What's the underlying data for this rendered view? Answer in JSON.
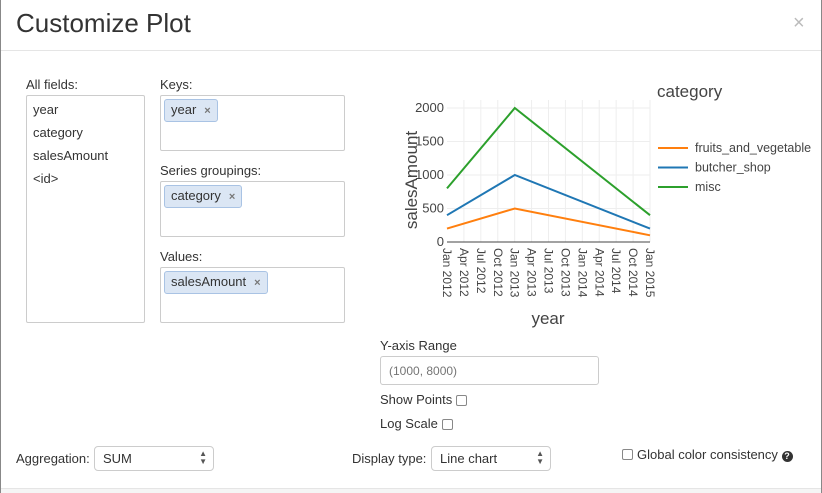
{
  "dialog": {
    "title": "Customize Plot",
    "close_label": "×"
  },
  "fields": {
    "label": "All fields:",
    "items": [
      "year",
      "category",
      "salesAmount",
      "<id>"
    ]
  },
  "keys": {
    "label": "Keys:",
    "chips": [
      "year"
    ]
  },
  "series": {
    "label": "Series groupings:",
    "chips": [
      "category"
    ]
  },
  "values": {
    "label": "Values:",
    "chips": [
      "salesAmount"
    ]
  },
  "chip_remove": "×",
  "options": {
    "y_range_label": "Y-axis Range",
    "y_range_placeholder": "(1000, 8000)",
    "y_range_value": "",
    "show_points_label": "Show Points",
    "show_points": false,
    "log_scale_label": "Log Scale",
    "log_scale": false
  },
  "bottom": {
    "aggregation_label": "Aggregation:",
    "aggregation_value": "SUM",
    "display_type_label": "Display type:",
    "display_type_value": "Line chart",
    "global_color_label": "Global color consistency",
    "global_color": false,
    "help_icon": "question-circle-icon"
  },
  "chart_data": {
    "type": "line",
    "xlabel": "year",
    "ylabel": "salesAmount",
    "legend_title": "category",
    "legend_position": "right",
    "grid": true,
    "x": [
      "2012-01-01",
      "2013-01-01",
      "2015-01-01"
    ],
    "xlim": [
      "2012-01-01",
      "2015-01-01"
    ],
    "x_ticks": [
      "Jan 2012",
      "Apr 2012",
      "Jul 2012",
      "Oct 2012",
      "Jan 2013",
      "Apr 2013",
      "Jul 2013",
      "Oct 2013",
      "Jan 2014",
      "Apr 2014",
      "Jul 2014",
      "Oct 2014",
      "Jan 2015"
    ],
    "ylim": [
      0,
      2100
    ],
    "y_ticks": [
      0,
      500,
      1000,
      1500,
      2000
    ],
    "series": [
      {
        "name": "fruits_and_vegetable",
        "color": "#ff7f0e",
        "values": [
          200,
          500,
          100
        ]
      },
      {
        "name": "butcher_shop",
        "color": "#1f77b4",
        "values": [
          400,
          1000,
          200
        ]
      },
      {
        "name": "misc",
        "color": "#2ca02c",
        "values": [
          800,
          2000,
          400
        ]
      }
    ]
  }
}
